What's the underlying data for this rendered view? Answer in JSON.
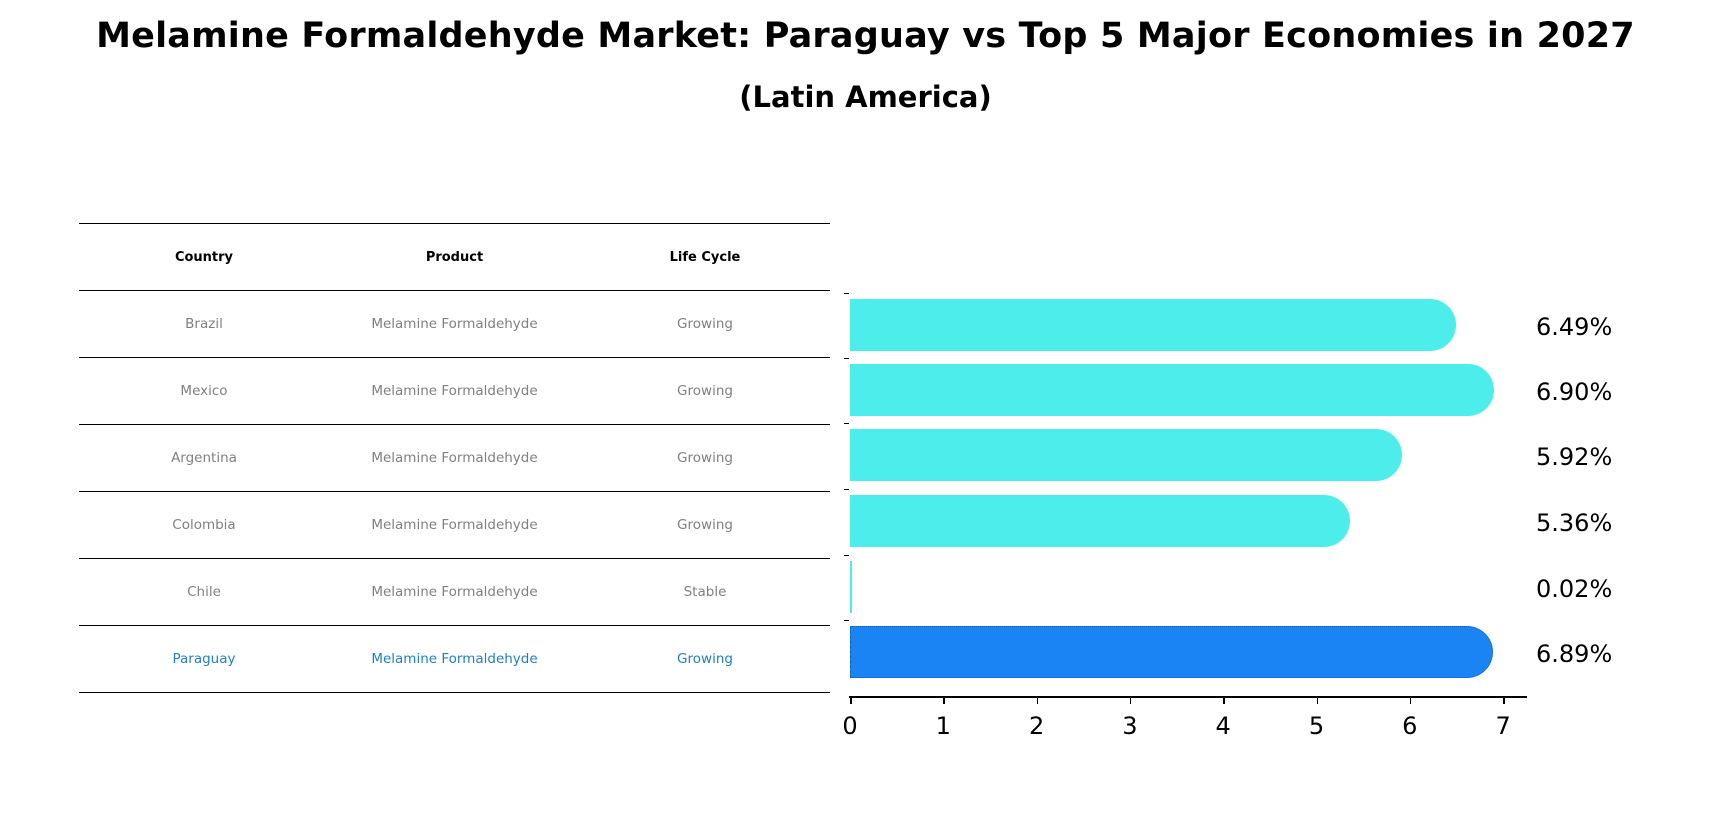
{
  "header": {
    "title": "Melamine Formaldehyde Market: Paraguay vs Top 5 Major Economies in 2027",
    "subtitle": "(Latin America)"
  },
  "table": {
    "columns": [
      "Country",
      "Product",
      "Life Cycle"
    ],
    "rows": [
      {
        "country": "Brazil",
        "product": "Melamine Formaldehyde",
        "life_cycle": "Growing",
        "highlight": false
      },
      {
        "country": "Mexico",
        "product": "Melamine Formaldehyde",
        "life_cycle": "Growing",
        "highlight": false
      },
      {
        "country": "Argentina",
        "product": "Melamine Formaldehyde",
        "life_cycle": "Growing",
        "highlight": false
      },
      {
        "country": "Colombia",
        "product": "Melamine Formaldehyde",
        "life_cycle": "Growing",
        "highlight": false
      },
      {
        "country": "Chile",
        "product": "Melamine Formaldehyde",
        "life_cycle": "Stable",
        "highlight": false
      },
      {
        "country": "Paraguay",
        "product": "Melamine Formaldehyde",
        "life_cycle": "Growing",
        "highlight": true
      }
    ]
  },
  "colors": {
    "bar_default": "#4DEDEB",
    "bar_highlight": "#1A84F4",
    "highlight_text": "#1F7FC6",
    "muted_text": "#808080"
  },
  "chart_data": {
    "type": "bar",
    "orientation": "horizontal",
    "title": "Melamine Formaldehyde Market: Paraguay vs Top 5 Major Economies in 2027",
    "subtitle": "(Latin America)",
    "categories": [
      "Brazil",
      "Mexico",
      "Argentina",
      "Colombia",
      "Chile",
      "Paraguay"
    ],
    "values": [
      6.49,
      6.9,
      5.92,
      5.36,
      0.02,
      6.89
    ],
    "value_labels": [
      "6.49%",
      "6.90%",
      "5.92%",
      "5.36%",
      "0.02%",
      "6.89%"
    ],
    "highlight": "Paraguay",
    "xlabel": "",
    "ylabel": "",
    "xlim": [
      0,
      7.25
    ],
    "xticks": [
      "0",
      "1",
      "2",
      "3",
      "4",
      "5",
      "6",
      "7"
    ],
    "grid": false,
    "legend": null
  }
}
